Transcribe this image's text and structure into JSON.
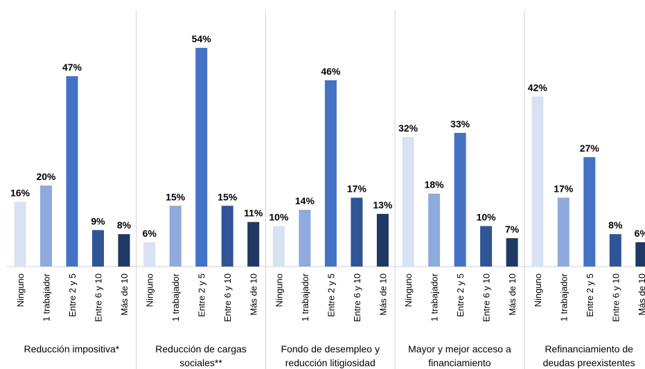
{
  "chart_data": {
    "type": "bar",
    "categories": [
      "Reducción impositiva*",
      "Reducción de cargas sociales**",
      "Fondo de desempleo y reducción litigiosidad",
      "Mayor y mejor acceso a financiamiento",
      "Refinanciamiento de deudas preexistentes"
    ],
    "series": [
      {
        "name": "Ninguno",
        "color": "#d9e2f3",
        "values": [
          16,
          6,
          10,
          32,
          42
        ],
        "value_labels": [
          "16%",
          "6%",
          "10%",
          "32%",
          "42%"
        ]
      },
      {
        "name": "1 trabajador",
        "color": "#8faadc",
        "values": [
          20,
          15,
          14,
          18,
          17
        ],
        "value_labels": [
          "20%",
          "15%",
          "14%",
          "18%",
          "17%"
        ]
      },
      {
        "name": "Entre 2 y 5",
        "color": "#4472c4",
        "values": [
          47,
          54,
          46,
          33,
          27
        ],
        "value_labels": [
          "47%",
          "54%",
          "46%",
          "33%",
          "27%"
        ]
      },
      {
        "name": "Entre 6 y 10",
        "color": "#2f5597",
        "values": [
          9,
          15,
          17,
          10,
          8
        ],
        "value_labels": [
          "9%",
          "15%",
          "17%",
          "10%",
          "8%"
        ]
      },
      {
        "name": "Más de 10",
        "color": "#1f3864",
        "values": [
          8,
          11,
          13,
          7,
          6
        ],
        "value_labels": [
          "8%",
          "11%",
          "13%",
          "7%",
          "6%"
        ]
      }
    ]
  }
}
